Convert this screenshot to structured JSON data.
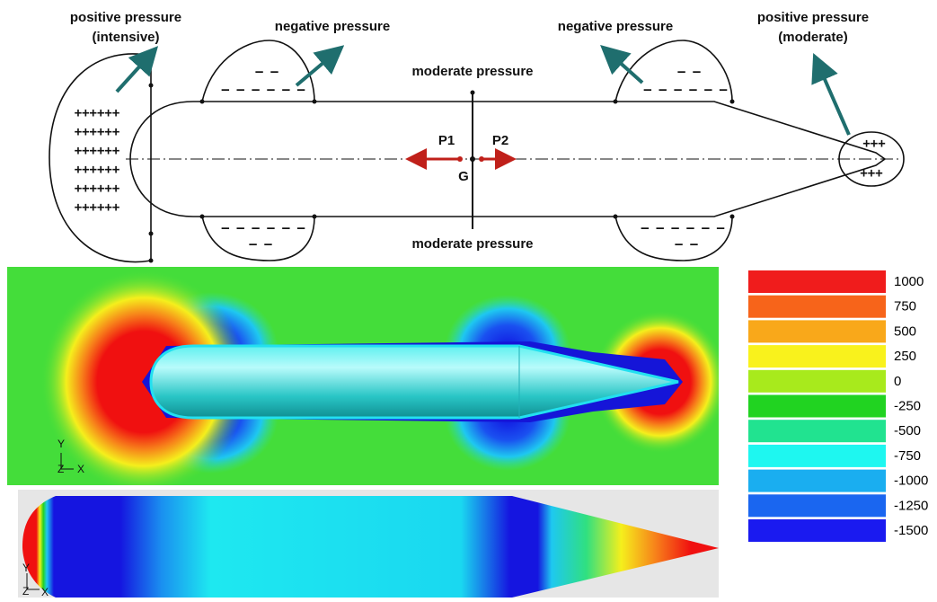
{
  "annotations": {
    "positive_intensive": [
      "positive pressure",
      "(intensive)"
    ],
    "negative_left": "negative pressure",
    "negative_right": "negative pressure",
    "positive_moderate": [
      "positive pressure",
      "(moderate)"
    ],
    "moderate_top": "moderate pressure",
    "moderate_bottom": "moderate pressure",
    "p1": "P1",
    "p2": "P2",
    "g": "G"
  },
  "signs": {
    "front": [
      "++++++",
      "++++++",
      "++++++",
      "++++++",
      "++++++",
      "++++++"
    ],
    "tail": [
      "+++",
      "+++"
    ],
    "top_left": [
      "– –",
      "– – – – – –"
    ],
    "bottom_left": [
      "– – – – – –",
      "– –"
    ],
    "top_right": [
      "– –",
      "– – – – – –"
    ],
    "bottom_right": [
      "– – – – – –",
      "– –"
    ]
  },
  "axes_middle": [
    "Y",
    "Z",
    "X"
  ],
  "axes_bottom": [
    "Y",
    "Z",
    "X"
  ],
  "legend": {
    "items": [
      {
        "label": "1000",
        "color": "#f01c1c"
      },
      {
        "label": "750",
        "color": "#f7641a"
      },
      {
        "label": "500",
        "color": "#f9a81a"
      },
      {
        "label": "250",
        "color": "#f9f21c"
      },
      {
        "label": "0",
        "color": "#a8ea1c"
      },
      {
        "label": "-250",
        "color": "#21d321"
      },
      {
        "label": "-500",
        "color": "#21e390"
      },
      {
        "label": "-750",
        "color": "#1ef7f0"
      },
      {
        "label": "-1000",
        "color": "#1aaef0"
      },
      {
        "label": "-1250",
        "color": "#1a66f0"
      },
      {
        "label": "-1500",
        "color": "#1a1af0"
      }
    ]
  }
}
